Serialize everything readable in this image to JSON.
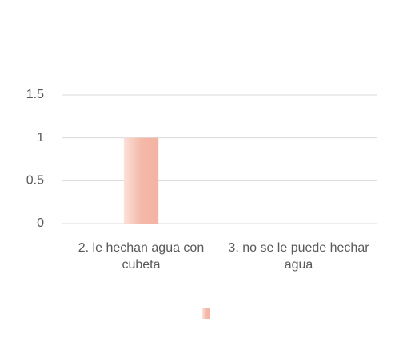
{
  "chart_data": {
    "type": "bar",
    "categories": [
      "2. le hechan agua con cubeta",
      "3. no se le puede hechar agua"
    ],
    "values": [
      1,
      0
    ],
    "color": "#f4b9a9",
    "ylim": [
      0,
      1.5
    ],
    "yticks": [
      0,
      0.5,
      1,
      1.5
    ],
    "grid": true
  }
}
